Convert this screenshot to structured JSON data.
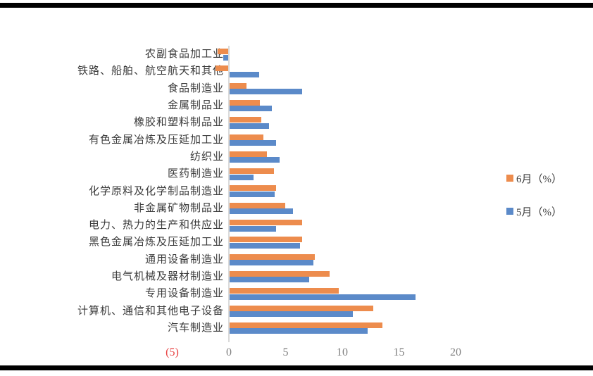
{
  "chart_data": {
    "type": "bar",
    "orientation": "horizontal",
    "title": "",
    "xlabel": "",
    "ylabel": "",
    "xlim": [
      -5,
      20
    ],
    "grid": false,
    "legend_position": "right",
    "axis_color": "#d9d9d9",
    "categories": [
      "农副食品加工业",
      "铁路、船舶、航空航天和其他",
      "食品制造业",
      "金属制品业",
      "橡胶和塑料制品业",
      "有色金属冶炼及压延加工业",
      "纺织业",
      "医药制造业",
      "化学原料及化学制品制造业",
      "非金属矿物制品业",
      "电力、热力的生产和供应业",
      "黑色金属冶炼及压延加工业",
      "通用设备制造业",
      "电气机械及器材制造业",
      "专用设备制造业",
      "计算机、通信和其他电子设备",
      "汽车制造业"
    ],
    "series": [
      {
        "name": "6月（%）",
        "key": "june",
        "color": "#ED8C4D",
        "values": [
          -1.0,
          -1.2,
          1.5,
          2.7,
          2.8,
          3.0,
          3.3,
          3.9,
          4.1,
          4.9,
          6.4,
          6.4,
          7.5,
          8.8,
          9.6,
          12.7,
          13.5
        ]
      },
      {
        "name": "5月（%）",
        "key": "may",
        "color": "#5B8AC9",
        "values": [
          -0.5,
          2.6,
          6.4,
          3.7,
          3.5,
          4.1,
          4.4,
          2.1,
          4.0,
          5.6,
          4.1,
          6.2,
          7.4,
          7.0,
          16.4,
          10.9,
          12.2
        ]
      }
    ],
    "x_ticks": [
      {
        "label": "(5)",
        "value": -5,
        "color": "#E84040"
      },
      {
        "label": "0",
        "value": 0,
        "color": "#7f7f7f"
      },
      {
        "label": "5",
        "value": 5,
        "color": "#7f7f7f"
      },
      {
        "label": "10",
        "value": 10,
        "color": "#7f7f7f"
      },
      {
        "label": "15",
        "value": 15,
        "color": "#7f7f7f"
      },
      {
        "label": "20",
        "value": 20,
        "color": "#7f7f7f"
      }
    ]
  }
}
